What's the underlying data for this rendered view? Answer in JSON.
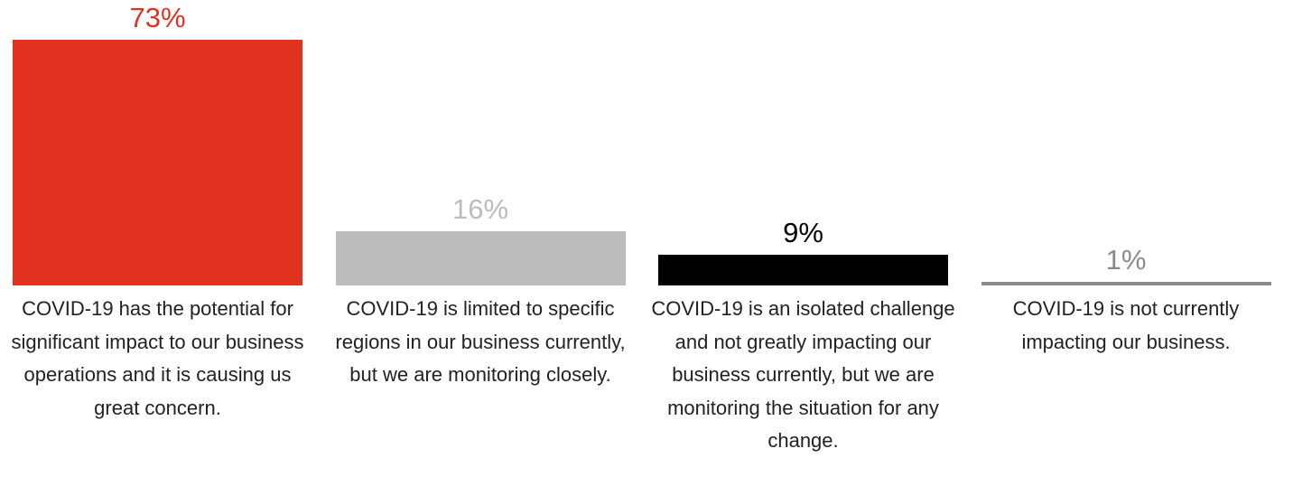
{
  "chart_data": {
    "type": "bar",
    "categories": [
      "COVID-19 has the potential for significant impact to our business operations and it is causing us great concern.",
      "COVID-19 is limited to specific regions in our business currently, but we are monitoring closely.",
      "COVID-19 is an isolated challenge and not greatly impacting our business currently, but we are monitoring the situation for any change.",
      "COVID-19 is not currently impacting our business."
    ],
    "values": [
      73,
      16,
      9,
      1
    ],
    "value_labels": [
      "73%",
      "16%",
      "9%",
      "1%"
    ],
    "colors": [
      "#e0321f",
      "#bcbcbd",
      "#000000",
      "#8a8a8a"
    ]
  }
}
